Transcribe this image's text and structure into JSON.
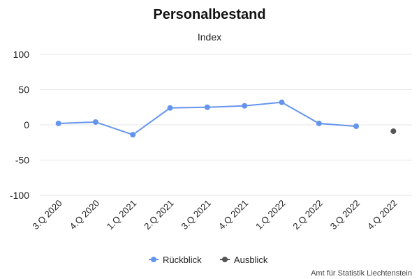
{
  "chart_data": {
    "type": "line",
    "title": "Personalbestand",
    "subtitle": "Index",
    "categories": [
      "3.Q 2020",
      "4.Q 2020",
      "1.Q 2021",
      "2.Q 2021",
      "3.Q 2021",
      "4.Q 2021",
      "1.Q 2022",
      "2.Q 2022",
      "3.Q 2022",
      "4.Q 2022"
    ],
    "ylim": [
      -100,
      100
    ],
    "yticks": [
      100,
      50,
      0,
      -50,
      -100
    ],
    "grid": true,
    "legend_position": "bottom",
    "series": [
      {
        "name": "Rückblick",
        "color": "#6495ED",
        "values": [
          2,
          4,
          -14,
          24,
          25,
          27,
          32,
          2,
          -2,
          null
        ]
      },
      {
        "name": "Ausblick",
        "color": "#555555",
        "values": [
          null,
          null,
          null,
          null,
          null,
          null,
          null,
          null,
          null,
          -9
        ]
      }
    ],
    "credit": "Amt für Statistik Liechtenstein"
  }
}
